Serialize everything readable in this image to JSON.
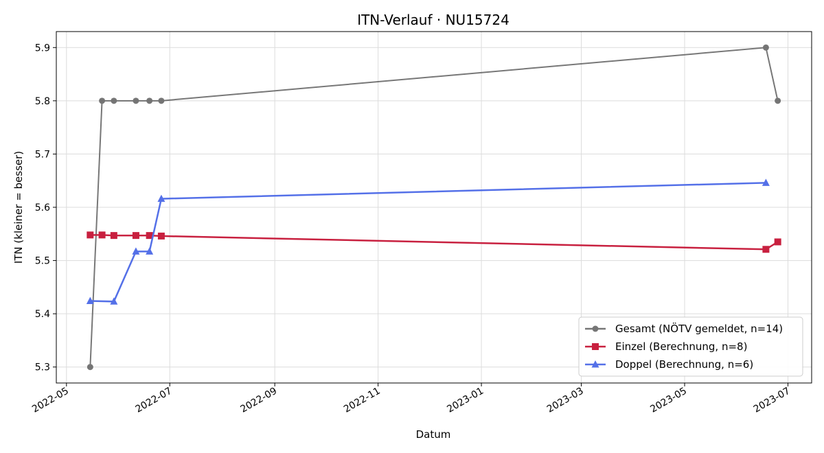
{
  "chart_data": {
    "type": "line",
    "title": "ITN-Verlauf · NU15724",
    "xlabel": "Datum",
    "ylabel": "ITN  (kleiner = besser)",
    "x_type": "date",
    "xlim": [
      "2022-04-25",
      "2023-07-15"
    ],
    "ylim": [
      5.27,
      5.93
    ],
    "x_ticks": [
      "2022-05-01",
      "2022-07-01",
      "2022-09-01",
      "2022-11-01",
      "2023-01-01",
      "2023-03-01",
      "2023-05-01",
      "2023-07-01"
    ],
    "x_tick_labels": [
      "2022-05",
      "2022-07",
      "2022-09",
      "2022-11",
      "2023-01",
      "2023-03",
      "2023-05",
      "2023-07"
    ],
    "y_ticks": [
      5.3,
      5.4,
      5.5,
      5.6,
      5.7,
      5.8,
      5.9
    ],
    "y_tick_labels": [
      "5.3",
      "5.4",
      "5.5",
      "5.6",
      "5.7",
      "5.8",
      "5.9"
    ],
    "grid": true,
    "legend_position": "bottom-right",
    "series": [
      {
        "name": "Gesamt (NÖTV gemeldet, n=14)",
        "color": "#555555",
        "marker": "circle",
        "points": [
          {
            "x": "2022-05-15",
            "y": 5.3
          },
          {
            "x": "2022-05-22",
            "y": 5.8
          },
          {
            "x": "2022-05-29",
            "y": 5.8
          },
          {
            "x": "2022-06-11",
            "y": 5.8
          },
          {
            "x": "2022-06-19",
            "y": 5.8
          },
          {
            "x": "2022-06-26",
            "y": 5.8
          },
          {
            "x": "2023-06-18",
            "y": 5.9
          },
          {
            "x": "2023-06-25",
            "y": 5.8
          }
        ]
      },
      {
        "name": "Einzel (Berechnung, n=8)",
        "color": "#c8203f",
        "marker": "square",
        "points": [
          {
            "x": "2022-05-15",
            "y": 5.548
          },
          {
            "x": "2022-05-22",
            "y": 5.548
          },
          {
            "x": "2022-05-29",
            "y": 5.547
          },
          {
            "x": "2022-06-11",
            "y": 5.547
          },
          {
            "x": "2022-06-19",
            "y": 5.547
          },
          {
            "x": "2022-06-26",
            "y": 5.546
          },
          {
            "x": "2023-06-18",
            "y": 5.521
          },
          {
            "x": "2023-06-25",
            "y": 5.535
          }
        ]
      },
      {
        "name": "Doppel (Berechnung, n=6)",
        "color": "#5470e8",
        "marker": "triangle",
        "points": [
          {
            "x": "2022-05-15",
            "y": 5.424
          },
          {
            "x": "2022-05-29",
            "y": 5.423
          },
          {
            "x": "2022-06-11",
            "y": 5.517
          },
          {
            "x": "2022-06-19",
            "y": 5.517
          },
          {
            "x": "2022-06-26",
            "y": 5.616
          },
          {
            "x": "2023-06-18",
            "y": 5.646
          }
        ]
      }
    ]
  }
}
